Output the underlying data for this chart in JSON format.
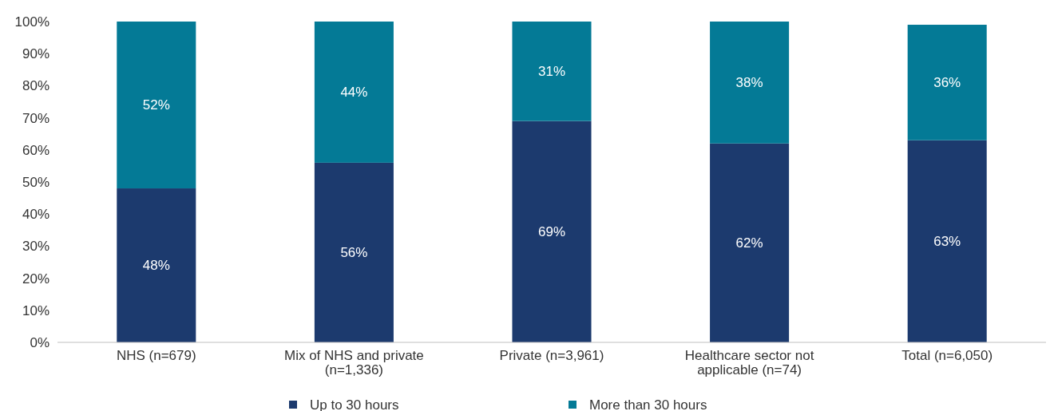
{
  "chart_data": {
    "type": "bar",
    "stacked": true,
    "categories": [
      "NHS (n=679)",
      "Mix of NHS and private (n=1,336)",
      "Private (n=3,961)",
      "Healthcare sector not applicable (n=74)",
      "Total (n=6,050)"
    ],
    "series": [
      {
        "name": "Up to 30 hours",
        "color": "#1c3a6e",
        "values": [
          48,
          56,
          69,
          62,
          63
        ],
        "value_labels": [
          "48%",
          "56%",
          "69%",
          "62%",
          "63%"
        ]
      },
      {
        "name": "More than 30 hours",
        "color": "#047a96",
        "values": [
          52,
          44,
          31,
          38,
          36
        ],
        "value_labels": [
          "52%",
          "44%",
          "31%",
          "38%",
          "36%"
        ]
      }
    ],
    "ylim": [
      0,
      100
    ],
    "yticks": [
      {
        "value": 0,
        "label": "0%"
      },
      {
        "value": 10,
        "label": "10%"
      },
      {
        "value": 20,
        "label": "20%"
      },
      {
        "value": 30,
        "label": "30%"
      },
      {
        "value": 40,
        "label": "40%"
      },
      {
        "value": 50,
        "label": "50%"
      },
      {
        "value": 60,
        "label": "60%"
      },
      {
        "value": 70,
        "label": "70%"
      },
      {
        "value": 80,
        "label": "80%"
      },
      {
        "value": 90,
        "label": "90%"
      },
      {
        "value": 100,
        "label": "100%"
      }
    ],
    "legend": "bottom",
    "grid": false
  }
}
